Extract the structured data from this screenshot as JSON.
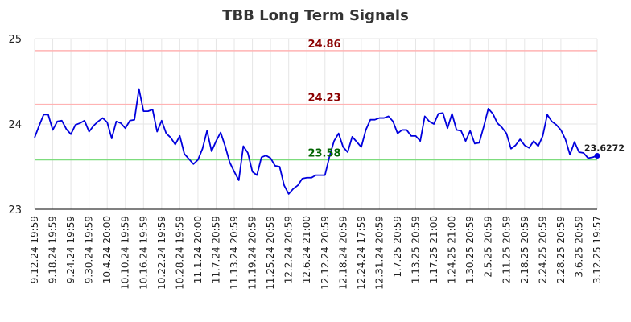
{
  "chart_data": {
    "type": "line",
    "title": "TBB Long Term Signals",
    "xlabel": "",
    "ylabel": "",
    "ylim": [
      23,
      25
    ],
    "y_ticks": [
      "23",
      "24",
      "25"
    ],
    "x_tick_labels": [
      "9.12.24 19:59",
      "9.18.24 19:59",
      "9.24.24 19:59",
      "9.30.24 19:59",
      "10.4.24 20:00",
      "10.10.24 19:59",
      "10.16.24 19:59",
      "10.22.24 19:59",
      "10.28.24 19:59",
      "11.1.24 20:00",
      "11.7.24 20:59",
      "11.13.24 20:59",
      "11.19.24 20:59",
      "11.25.24 20:59",
      "12.2.24 20:59",
      "12.6.24 21:00",
      "12.12.24 20:59",
      "12.18.24 20:59",
      "12.24.24 17:59",
      "12.31.24 20:59",
      "1.7.25 20:59",
      "1.13.25 20:59",
      "1.17.25 21:00",
      "1.24.25 21:00",
      "1.30.25 20:59",
      "2.5.25 20:59",
      "2.11.25 20:59",
      "2.18.25 20:59",
      "2.24.25 20:59",
      "2.28.25 20:59",
      "3.6.25 20:59",
      "3.12.25 19:57"
    ],
    "grid": true,
    "series": [
      {
        "color": "#0000dd",
        "values": [
          23.84,
          23.98,
          24.11,
          24.11,
          23.93,
          24.03,
          24.04,
          23.94,
          23.88,
          23.99,
          24.01,
          24.04,
          23.91,
          23.98,
          24.03,
          24.07,
          24.02,
          23.83,
          24.03,
          24.01,
          23.95,
          24.04,
          24.05,
          24.41,
          24.15,
          24.15,
          24.17,
          23.91,
          24.04,
          23.89,
          23.84,
          23.76,
          23.86,
          23.65,
          23.59,
          23.53,
          23.58,
          23.71,
          23.92,
          23.68,
          23.8,
          23.9,
          23.74,
          23.55,
          23.44,
          23.34,
          23.74,
          23.66,
          23.44,
          23.4,
          23.61,
          23.63,
          23.6,
          23.51,
          23.5,
          23.28,
          23.18,
          23.24,
          23.28,
          23.36,
          23.37,
          23.37,
          23.4,
          23.4,
          23.4,
          23.62,
          23.8,
          23.89,
          23.73,
          23.67,
          23.85,
          23.79,
          23.73,
          23.93,
          24.05,
          24.05,
          24.07,
          24.07,
          24.09,
          24.03,
          23.89,
          23.93,
          23.93,
          23.86,
          23.86,
          23.8,
          24.09,
          24.03,
          24.0,
          24.12,
          24.13,
          23.95,
          24.12,
          23.93,
          23.92,
          23.8,
          23.92,
          23.77,
          23.78,
          23.97,
          24.18,
          24.12,
          24.01,
          23.96,
          23.89,
          23.71,
          23.75,
          23.82,
          23.75,
          23.72,
          23.8,
          23.74,
          23.86,
          24.11,
          24.03,
          23.99,
          23.93,
          23.82,
          23.64,
          23.79,
          23.67,
          23.66,
          23.6,
          23.61,
          23.6272
        ]
      }
    ],
    "reference_lines": [
      {
        "value": 24.86,
        "label": "24.86",
        "color": "#ffb3b3",
        "label_color": "#8b0000"
      },
      {
        "value": 24.23,
        "label": "24.23",
        "color": "#ffb3b3",
        "label_color": "#8b0000"
      },
      {
        "value": 23.58,
        "label": "23.58",
        "color": "#7ddc7d",
        "label_color": "#006400"
      }
    ],
    "last_value_label": "23.6272"
  }
}
